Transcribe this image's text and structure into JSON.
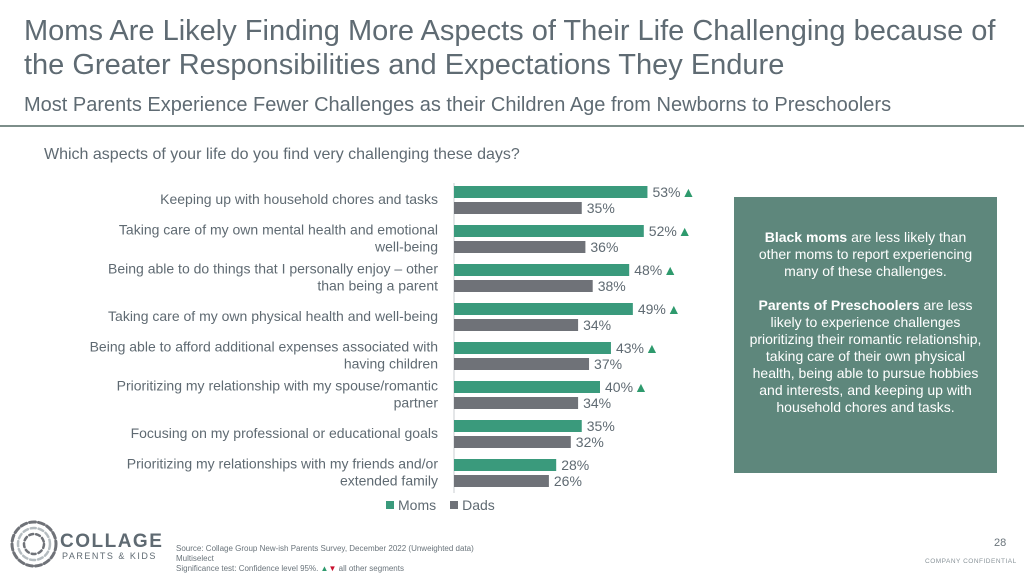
{
  "title": "Moms Are Likely Finding More Aspects of Their Life Challenging because of the Greater Responsibilities and Expectations They Endure",
  "subtitle": "Most Parents Experience Fewer Challenges as their Children Age from Newborns to Preschoolers",
  "question": "Which aspects of your life do you find very challenging these days?",
  "callout": {
    "p1_bold": "Black moms",
    "p1_rest": " are less likely than other moms to report experiencing many of these challenges.",
    "p2_bold": "Parents of Preschoolers",
    "p2_rest": " are less likely to experience challenges prioritizing their romantic relationship, taking care of their own physical health, being able to pursue hobbies and interests, and keeping up with household chores and tasks."
  },
  "legend": {
    "moms": "Moms",
    "dads": "Dads"
  },
  "logo": {
    "word": "COLLAGE",
    "sub": "PARENTS & KIDS"
  },
  "source": {
    "line1": "Source: Collage Group New-ish Parents Survey, December 2022 (Unweighted data)",
    "line2": "Multiselect",
    "line3_prefix": "Significance test: Confidence level 95%.",
    "up": "▲",
    "down": "▼",
    "line3_suffix": " all other segments"
  },
  "page_number": "28",
  "confidential": "COMPANY CONFIDENTIAL",
  "colors": {
    "moms": "#3a9a7c",
    "dads": "#6f7278",
    "significance": "#2e9a6d",
    "callout_bg": "#5e877c"
  },
  "chart_data": {
    "type": "bar",
    "orientation": "horizontal",
    "categories": [
      "Keeping up with household chores and tasks",
      "Taking care of my own mental health and emotional well-being",
      "Being able to do things that I personally enjoy – other than being a parent",
      "Taking care of my own physical health and well-being",
      "Being able to afford additional expenses associated with having children",
      "Prioritizing my relationship with my spouse/romantic partner",
      "Focusing on my professional or educational goals",
      "Prioritizing my relationships with my friends and/or extended family"
    ],
    "category_lines": [
      [
        "Keeping up with household chores and tasks"
      ],
      [
        "Taking care of my own mental health and emotional",
        "well-being"
      ],
      [
        "Being able to do things that I personally enjoy – other",
        "than being a parent"
      ],
      [
        "Taking care of my own physical health and well-being"
      ],
      [
        "Being able to afford additional expenses associated with",
        "having children"
      ],
      [
        "Prioritizing my relationship with my spouse/romantic",
        "partner"
      ],
      [
        "Focusing on my professional or educational goals"
      ],
      [
        "Prioritizing my relationships with my friends and/or",
        "extended family"
      ]
    ],
    "series": [
      {
        "name": "Moms",
        "values": [
          53,
          52,
          48,
          49,
          43,
          40,
          35,
          28
        ],
        "labels": [
          "53%",
          "52%",
          "48%",
          "49%",
          "43%",
          "40%",
          "35%",
          "28%"
        ],
        "significant_up": [
          true,
          true,
          true,
          true,
          true,
          true,
          false,
          false
        ]
      },
      {
        "name": "Dads",
        "values": [
          35,
          36,
          38,
          34,
          37,
          34,
          32,
          26
        ],
        "labels": [
          "35%",
          "36%",
          "38%",
          "34%",
          "37%",
          "34%",
          "32%",
          "26%"
        ]
      }
    ],
    "xlim": [
      0,
      100
    ]
  }
}
